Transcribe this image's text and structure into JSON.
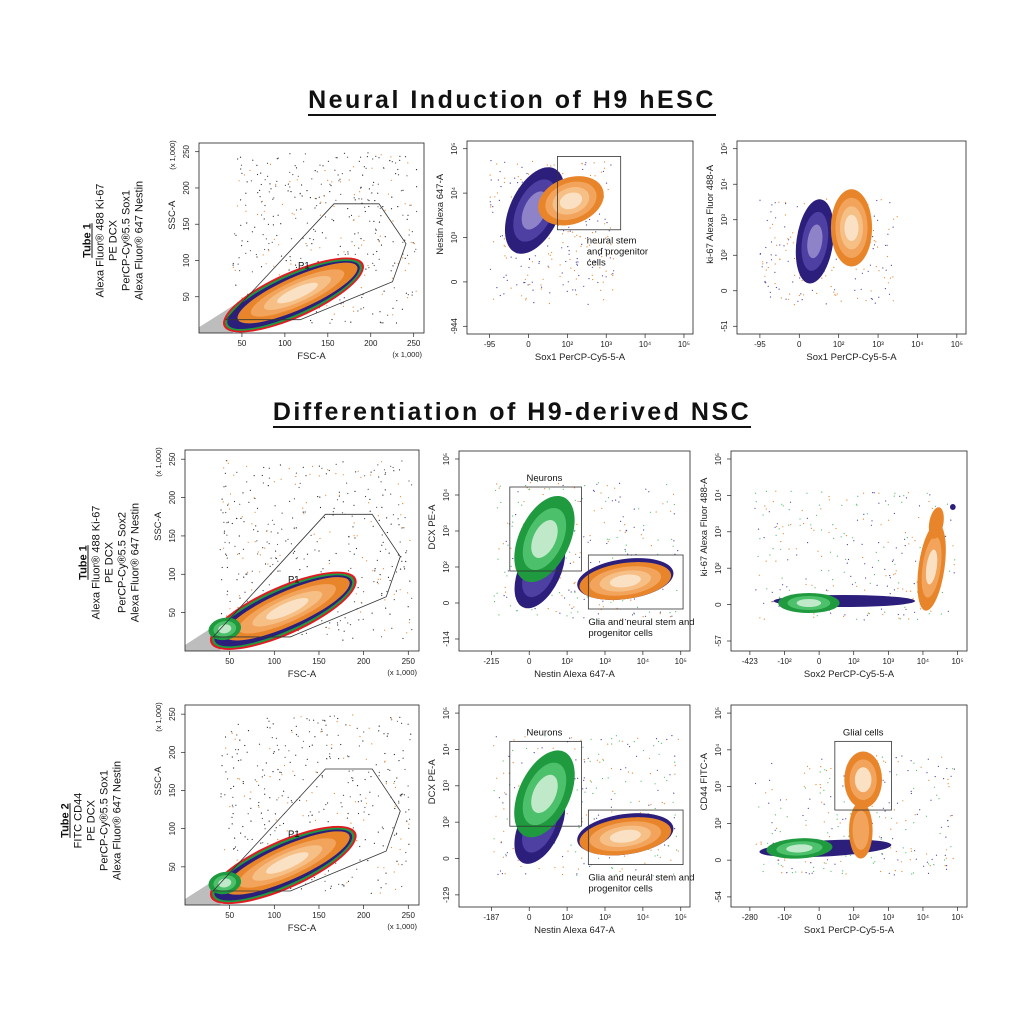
{
  "sections": [
    {
      "title": "Neural Induction of H9 hESC"
    },
    {
      "title": "Differentiation of H9-derived NSC"
    }
  ],
  "tube_labels": [
    {
      "name": "Tube 1",
      "lines": [
        "Alexa Fluor® 488 Ki-67",
        "PE DCX",
        "PerCP-Cy®5.5 Sox1",
        "Alexa Fluor® 647 Nestin"
      ]
    },
    {
      "name": "Tube 1",
      "lines": [
        "Alexa Fluor® 488 Ki-67",
        "PE DCX",
        "PerCP-Cy®5.5 Sox2",
        "Alexa Fluor® 647 Nestin"
      ]
    },
    {
      "name": "Tube 2",
      "lines": [
        "FITC CD44",
        "PE DCX",
        "PerCP-Cy®5.5 Sox1",
        "Alexa Fluor® 647 Nestin"
      ]
    }
  ],
  "colors": {
    "axis": "#222222",
    "orange_dark": "#e8852a",
    "orange_mid": "#f2a45c",
    "orange_light": "#fbe1c4",
    "purple_dark": "#2c1f7c",
    "purple_mid": "#4e3fa3",
    "purple_light": "#8e83c8",
    "green_dark": "#1f9a3e",
    "green_mid": "#4cc06a",
    "green_light": "#bfe9c9",
    "red": "#e21b23",
    "gray": "#9a9a9a"
  },
  "chart_data": [
    {
      "id": "r1c1",
      "type": "scatter",
      "title": "",
      "xlabel": "FSC-A",
      "ylabel": "SSC-A",
      "x_mult": "(x 1,000)",
      "y_mult": "(x 1,000)",
      "x_ticks": [
        "50",
        "100",
        "150",
        "200",
        "250"
      ],
      "y_ticks": [
        "50",
        "100",
        "150",
        "200",
        "250"
      ],
      "xlim": [
        0,
        262
      ],
      "ylim": [
        0,
        262
      ],
      "gates": [
        {
          "label": "P1"
        }
      ],
      "populations": [
        "gray",
        "red",
        "green",
        "purple",
        "orange"
      ]
    },
    {
      "id": "r1c2",
      "type": "scatter",
      "title": "",
      "xlabel": "Sox1 PerCP-Cy5-5-A",
      "ylabel": "Nestin Alexa 647-A",
      "x_ticks": [
        "-95",
        "0",
        "10²",
        "10³",
        "10⁴",
        "10⁵"
      ],
      "y_ticks": [
        "-944",
        "0",
        "10³",
        "10⁴",
        "10⁵"
      ],
      "gates": [
        {
          "label": "neural stem and progenitor cells"
        }
      ],
      "populations": [
        "purple",
        "orange"
      ]
    },
    {
      "id": "r1c3",
      "type": "scatter",
      "title": "",
      "xlabel": "Sox1 PerCP-Cy5-5-A",
      "ylabel": "ki-67 Alexa Fluor 488-A",
      "x_ticks": [
        "-95",
        "0",
        "10²",
        "10³",
        "10⁴",
        "10⁵"
      ],
      "y_ticks": [
        "-51",
        "0",
        "10²",
        "10³",
        "10⁴",
        "10⁵"
      ],
      "gates": [],
      "populations": [
        "purple",
        "orange"
      ]
    },
    {
      "id": "r2c1",
      "type": "scatter",
      "title": "",
      "xlabel": "FSC-A",
      "ylabel": "SSC-A",
      "x_mult": "(x 1,000)",
      "y_mult": "(x 1,000)",
      "x_ticks": [
        "50",
        "100",
        "150",
        "200",
        "250"
      ],
      "y_ticks": [
        "50",
        "100",
        "150",
        "200",
        "250"
      ],
      "xlim": [
        0,
        262
      ],
      "ylim": [
        0,
        262
      ],
      "gates": [
        {
          "label": "P1"
        }
      ],
      "populations": [
        "gray",
        "red",
        "green",
        "purple",
        "orange"
      ]
    },
    {
      "id": "r2c2",
      "type": "scatter",
      "title": "",
      "xlabel": "Nestin Alexa 647-A",
      "ylabel": "DCX PE-A",
      "x_ticks": [
        "-215",
        "0",
        "10²",
        "10³",
        "10⁴",
        "10⁵"
      ],
      "y_ticks": [
        "-114",
        "0",
        "10²",
        "10³",
        "10⁴",
        "10⁵"
      ],
      "gates": [
        {
          "label": "Neurons"
        },
        {
          "label": "Glia and neural stem and progenitor cells"
        }
      ],
      "populations": [
        "purple",
        "green",
        "orange"
      ]
    },
    {
      "id": "r2c3",
      "type": "scatter",
      "title": "",
      "xlabel": "Sox2 PerCP-Cy5-5-A",
      "ylabel": "ki-67 Alexa Fluor 488-A",
      "x_ticks": [
        "-423",
        "-10²",
        "0",
        "10²",
        "10³",
        "10⁴",
        "10⁵"
      ],
      "y_ticks": [
        "-57",
        "0",
        "10²",
        "10³",
        "10⁴",
        "10⁵"
      ],
      "gates": [],
      "populations": [
        "purple",
        "green",
        "orange"
      ]
    },
    {
      "id": "r3c1",
      "type": "scatter",
      "title": "",
      "xlabel": "FSC-A",
      "ylabel": "SSC-A",
      "x_mult": "(x 1,000)",
      "y_mult": "(x 1,000)",
      "x_ticks": [
        "50",
        "100",
        "150",
        "200",
        "250"
      ],
      "y_ticks": [
        "50",
        "100",
        "150",
        "200",
        "250"
      ],
      "xlim": [
        0,
        262
      ],
      "ylim": [
        0,
        262
      ],
      "gates": [
        {
          "label": "P1"
        }
      ],
      "populations": [
        "gray",
        "red",
        "green",
        "purple",
        "orange"
      ]
    },
    {
      "id": "r3c2",
      "type": "scatter",
      "title": "",
      "xlabel": "Nestin Alexa 647-A",
      "ylabel": "DCX PE-A",
      "x_ticks": [
        "-187",
        "0",
        "10²",
        "10³",
        "10⁴",
        "10⁵"
      ],
      "y_ticks": [
        "-129",
        "0",
        "10²",
        "10³",
        "10⁴",
        "10⁵"
      ],
      "gates": [
        {
          "label": "Neurons"
        },
        {
          "label": "Glia and neural stem and progenitor cells"
        }
      ],
      "populations": [
        "purple",
        "green",
        "orange"
      ]
    },
    {
      "id": "r3c3",
      "type": "scatter",
      "title": "",
      "xlabel": "Sox1 PerCP-Cy5-5-A",
      "ylabel": "CD44 FITC-A",
      "x_ticks": [
        "-280",
        "-10²",
        "0",
        "10²",
        "10³",
        "10⁴",
        "10⁵"
      ],
      "y_ticks": [
        "-54",
        "0",
        "10²",
        "10³",
        "10⁴",
        "10⁵"
      ],
      "gates": [
        {
          "label": "Glial cells"
        }
      ],
      "populations": [
        "purple",
        "green",
        "orange"
      ]
    }
  ]
}
